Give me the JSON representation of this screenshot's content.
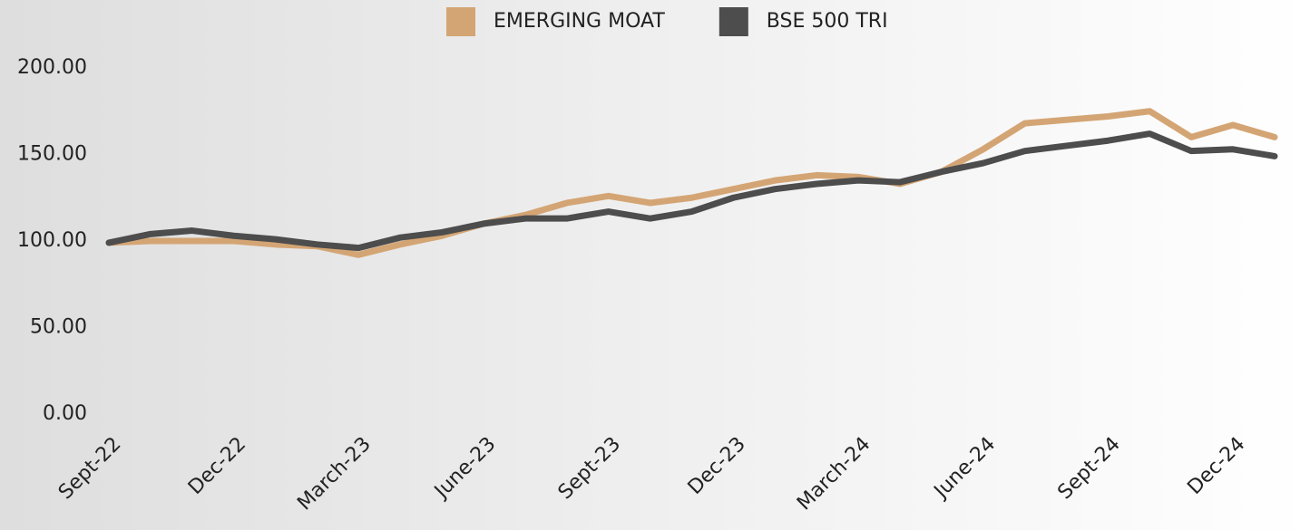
{
  "chart_data": {
    "type": "line",
    "categories": [
      "Sept-22",
      null,
      null,
      "Dec-22",
      null,
      null,
      "March-23",
      null,
      null,
      "June-23",
      null,
      null,
      "Sept-23",
      null,
      null,
      "Dec-23",
      null,
      null,
      "March-24",
      null,
      null,
      "June-24",
      null,
      null,
      "Sept-24",
      null,
      null,
      "Dec-24",
      null
    ],
    "series": [
      {
        "name": "EMERGING MOAT",
        "color": "#d4a574",
        "values": [
          99,
          100,
          100,
          100,
          98,
          97,
          92,
          98,
          103,
          110,
          115,
          122,
          126,
          122,
          125,
          130,
          135,
          138,
          137,
          133,
          140,
          153,
          168,
          170,
          172,
          175,
          160,
          167,
          160
        ]
      },
      {
        "name": "BSE 500 TRI",
        "color": "#4d4d4d",
        "values": [
          99,
          104,
          106,
          103,
          101,
          98,
          96,
          102,
          105,
          110,
          113,
          113,
          117,
          113,
          117,
          125,
          130,
          133,
          135,
          134,
          140,
          145,
          152,
          155,
          158,
          162,
          152,
          153,
          149
        ]
      }
    ],
    "ylim": [
      0,
      200
    ],
    "yticks": [
      {
        "value": 0,
        "label": "0.00"
      },
      {
        "value": 50,
        "label": "50.00"
      },
      {
        "value": 100,
        "label": "100.00"
      },
      {
        "value": 150,
        "label": "150.00"
      },
      {
        "value": 200,
        "label": "200.00"
      }
    ],
    "legend": "top",
    "grid": false
  }
}
